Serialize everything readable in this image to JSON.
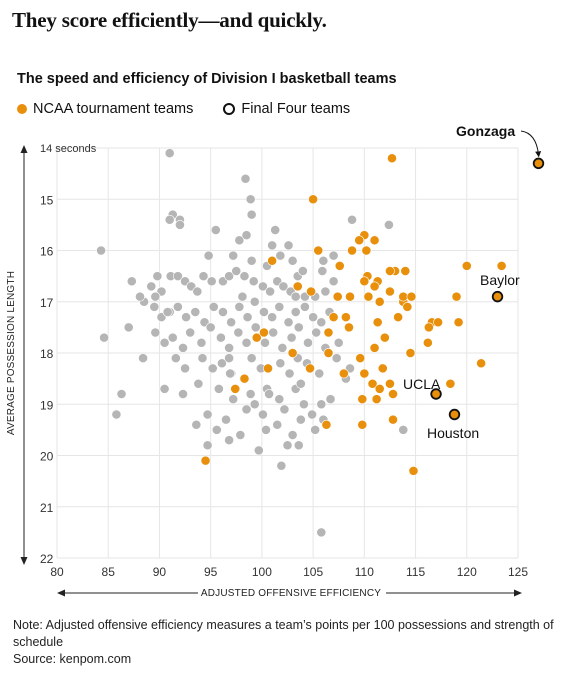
{
  "headline": "They score efficiently—and quickly.",
  "subtitle": "The speed and efficiency of Division I basketball teams",
  "legend": {
    "tournament": "NCAA tournament teams",
    "final_four": "Final Four teams"
  },
  "footer": {
    "note": "Note: Adjusted offensive efficiency measures a team’s points per 100 possessions and strength of schedule",
    "source": "Source: kenpom.com"
  },
  "colors": {
    "tournament": "#e8900c",
    "other": "#b5b5b5",
    "final_four_outline": "#111111"
  },
  "chart_data": {
    "type": "scatter",
    "xlabel": "ADJUSTED OFFENSIVE EFFICIENCY",
    "ylabel": "AVERAGE POSSESSION LENGTH",
    "xlim": [
      80,
      125
    ],
    "ylim": [
      14,
      22
    ],
    "y_reversed": true,
    "grid": true,
    "x_ticks": [
      "80",
      "85",
      "90",
      "95",
      "100",
      "105",
      "110",
      "115",
      "120",
      "125"
    ],
    "y_ticks": [
      "14 seconds",
      "15",
      "16",
      "17",
      "18",
      "19",
      "20",
      "21",
      "22"
    ],
    "final_four": [
      {
        "name": "Gonzaga",
        "x": 127,
        "y": 14.3
      },
      {
        "name": "Baylor",
        "x": 123,
        "y": 16.9
      },
      {
        "name": "UCLA",
        "x": 117,
        "y": 18.8
      },
      {
        "name": "Houston",
        "x": 118.8,
        "y": 19.2
      }
    ],
    "tournament_teams": [
      [
        112.7,
        14.2
      ],
      [
        105,
        15
      ],
      [
        110,
        15.7
      ],
      [
        109.5,
        15.8
      ],
      [
        111,
        15.8
      ],
      [
        108.8,
        16
      ],
      [
        110.2,
        16
      ],
      [
        105.5,
        16
      ],
      [
        101,
        16.2
      ],
      [
        107.6,
        16.3
      ],
      [
        113,
        16.4
      ],
      [
        114,
        16.4
      ],
      [
        112.5,
        16.4
      ],
      [
        110.3,
        16.5
      ],
      [
        110,
        16.6
      ],
      [
        111.3,
        16.6
      ],
      [
        111,
        16.7
      ],
      [
        103.5,
        16.7
      ],
      [
        104.8,
        16.8
      ],
      [
        107.4,
        16.9
      ],
      [
        108.6,
        16.9
      ],
      [
        110.4,
        16.9
      ],
      [
        111.5,
        17
      ],
      [
        113.8,
        17
      ],
      [
        116.6,
        17.4
      ],
      [
        117.2,
        17.4
      ],
      [
        116.3,
        17.5
      ],
      [
        116.2,
        17.8
      ],
      [
        107,
        17.3
      ],
      [
        108.2,
        17.3
      ],
      [
        108.5,
        17.5
      ],
      [
        106.5,
        17.6
      ],
      [
        99.5,
        17.7
      ],
      [
        100.2,
        17.6
      ],
      [
        103,
        18
      ],
      [
        106.5,
        18
      ],
      [
        100.6,
        18.3
      ],
      [
        108,
        18.4
      ],
      [
        110,
        18.4
      ],
      [
        110.8,
        18.6
      ],
      [
        111.5,
        18.7
      ],
      [
        112.5,
        18.6
      ],
      [
        111.2,
        18.9
      ],
      [
        112.8,
        18.8
      ],
      [
        109.8,
        18.9
      ],
      [
        112.8,
        19.3
      ],
      [
        106.3,
        19.4
      ],
      [
        109.8,
        19.4
      ],
      [
        112.5,
        16.8
      ],
      [
        113.8,
        16.9
      ],
      [
        114.6,
        16.9
      ],
      [
        120,
        16.3
      ],
      [
        123.4,
        16.3
      ],
      [
        119,
        16.9
      ],
      [
        119.2,
        17.4
      ],
      [
        118.4,
        18.6
      ],
      [
        114.2,
        17.1
      ],
      [
        114.8,
        20.3
      ],
      [
        98.3,
        18.5
      ],
      [
        97.4,
        18.7
      ],
      [
        94.5,
        20.1
      ],
      [
        104.7,
        18.3
      ],
      [
        111.3,
        17.4
      ],
      [
        111.8,
        18.3
      ],
      [
        111,
        17.9
      ],
      [
        121.4,
        18.2
      ],
      [
        114.5,
        18
      ],
      [
        112,
        17.7
      ],
      [
        113.3,
        17.3
      ],
      [
        109.6,
        18.1
      ]
    ],
    "other_teams": [
      [
        91,
        14.1
      ],
      [
        91.3,
        15.3
      ],
      [
        92,
        15.4
      ],
      [
        91,
        15.4
      ],
      [
        95.5,
        15.6
      ],
      [
        99,
        15.3
      ],
      [
        108.8,
        15.4
      ],
      [
        112.4,
        15.5
      ],
      [
        97.8,
        15.8
      ],
      [
        98.5,
        15.7
      ],
      [
        101,
        15.9
      ],
      [
        102.6,
        15.9
      ],
      [
        97.2,
        16.1
      ],
      [
        99,
        16.2
      ],
      [
        100.5,
        16.3
      ],
      [
        101.8,
        16.1
      ],
      [
        103,
        16.2
      ],
      [
        103.5,
        16.5
      ],
      [
        104,
        16.4
      ],
      [
        106,
        16.2
      ],
      [
        107,
        16.1
      ],
      [
        84.3,
        16
      ],
      [
        87.3,
        16.6
      ],
      [
        89.2,
        16.7
      ],
      [
        89.8,
        16.5
      ],
      [
        90.2,
        16.8
      ],
      [
        91.1,
        16.5
      ],
      [
        91.8,
        16.5
      ],
      [
        92.5,
        16.6
      ],
      [
        93.1,
        16.7
      ],
      [
        93.7,
        16.8
      ],
      [
        94.3,
        16.5
      ],
      [
        95.1,
        16.6
      ],
      [
        96.2,
        16.6
      ],
      [
        96.8,
        16.5
      ],
      [
        97.5,
        16.4
      ],
      [
        98.3,
        16.5
      ],
      [
        99.2,
        16.6
      ],
      [
        100.1,
        16.7
      ],
      [
        100.8,
        16.8
      ],
      [
        101.5,
        16.6
      ],
      [
        102.1,
        16.7
      ],
      [
        102.8,
        16.8
      ],
      [
        103.3,
        16.9
      ],
      [
        104.2,
        16.9
      ],
      [
        105.2,
        16.9
      ],
      [
        106.2,
        16.8
      ],
      [
        107,
        16.6
      ],
      [
        88.5,
        17
      ],
      [
        89.5,
        17.1
      ],
      [
        90.2,
        17.3
      ],
      [
        91,
        17.2
      ],
      [
        91.8,
        17.1
      ],
      [
        92.6,
        17.3
      ],
      [
        93.5,
        17.2
      ],
      [
        94.4,
        17.4
      ],
      [
        95.3,
        17.1
      ],
      [
        96.2,
        17.2
      ],
      [
        97,
        17.4
      ],
      [
        97.8,
        17.1
      ],
      [
        98.6,
        17.3
      ],
      [
        99.3,
        17
      ],
      [
        100.2,
        17.2
      ],
      [
        101,
        17.3
      ],
      [
        101.7,
        17.1
      ],
      [
        102.6,
        17.4
      ],
      [
        103.3,
        17.2
      ],
      [
        104.2,
        17.1
      ],
      [
        105,
        17.3
      ],
      [
        105.8,
        17.4
      ],
      [
        106.6,
        17.2
      ],
      [
        87,
        17.5
      ],
      [
        89.6,
        17.6
      ],
      [
        90.5,
        17.8
      ],
      [
        91.3,
        17.7
      ],
      [
        92.3,
        17.9
      ],
      [
        93,
        17.6
      ],
      [
        94.1,
        17.8
      ],
      [
        95,
        17.5
      ],
      [
        96,
        17.7
      ],
      [
        96.8,
        17.9
      ],
      [
        97.7,
        17.6
      ],
      [
        98.5,
        17.8
      ],
      [
        99.4,
        17.5
      ],
      [
        100.3,
        17.8
      ],
      [
        101.1,
        17.6
      ],
      [
        102,
        17.9
      ],
      [
        102.9,
        17.7
      ],
      [
        103.6,
        17.5
      ],
      [
        104.5,
        17.8
      ],
      [
        105.3,
        17.6
      ],
      [
        106.2,
        17.9
      ],
      [
        84.6,
        17.7
      ],
      [
        88.4,
        18.1
      ],
      [
        91.6,
        18.1
      ],
      [
        92.5,
        18.3
      ],
      [
        94.2,
        18.1
      ],
      [
        95.2,
        18.3
      ],
      [
        96.1,
        18.2
      ],
      [
        97,
        18.4
      ],
      [
        99,
        18.1
      ],
      [
        99.9,
        18.3
      ],
      [
        101.8,
        18.2
      ],
      [
        102.7,
        18.4
      ],
      [
        103.5,
        18.1
      ],
      [
        104.4,
        18.2
      ],
      [
        105.6,
        18.4
      ],
      [
        107.3,
        18.1
      ],
      [
        108.6,
        18.3
      ],
      [
        86.3,
        18.8
      ],
      [
        90.5,
        18.7
      ],
      [
        92.3,
        18.8
      ],
      [
        93.8,
        18.6
      ],
      [
        95.8,
        18.7
      ],
      [
        97.2,
        18.9
      ],
      [
        98.9,
        18.8
      ],
      [
        100.5,
        18.7
      ],
      [
        101.7,
        18.9
      ],
      [
        103.3,
        18.7
      ],
      [
        104.1,
        19
      ],
      [
        85.8,
        19.2
      ],
      [
        94.7,
        19.2
      ],
      [
        96.5,
        19.3
      ],
      [
        98.5,
        19.1
      ],
      [
        100.1,
        19.2
      ],
      [
        102.2,
        19.1
      ],
      [
        103.8,
        19.3
      ],
      [
        105.8,
        19
      ],
      [
        106,
        19.3
      ],
      [
        93.6,
        19.4
      ],
      [
        95.6,
        19.5
      ],
      [
        97.9,
        19.6
      ],
      [
        100.4,
        19.5
      ],
      [
        101.5,
        19.4
      ],
      [
        103,
        19.6
      ],
      [
        105.2,
        19.5
      ],
      [
        113.8,
        19.5
      ],
      [
        96.8,
        19.7
      ],
      [
        94.7,
        19.8
      ],
      [
        99.7,
        19.9
      ],
      [
        103.6,
        19.8
      ],
      [
        101.9,
        20.2
      ],
      [
        105.8,
        21.5
      ],
      [
        98.9,
        15
      ],
      [
        92,
        15.5
      ],
      [
        89.6,
        16.9
      ],
      [
        90.8,
        17.2
      ],
      [
        96.9,
        18.4
      ],
      [
        98.1,
        16.9
      ],
      [
        103.8,
        18.6
      ],
      [
        102.5,
        19.8
      ],
      [
        94.8,
        16.1
      ],
      [
        98.4,
        14.6
      ],
      [
        96.8,
        18.1
      ],
      [
        100.7,
        18.8
      ],
      [
        99.3,
        19
      ],
      [
        106.7,
        18.9
      ],
      [
        104.9,
        19.2
      ],
      [
        108.2,
        18.5
      ],
      [
        107.5,
        17.8
      ],
      [
        105.9,
        16.4
      ],
      [
        101.3,
        15.6
      ],
      [
        88.1,
        16.9
      ]
    ],
    "annotations": [
      "Gonzaga",
      "Baylor",
      "UCLA",
      "Houston"
    ]
  }
}
